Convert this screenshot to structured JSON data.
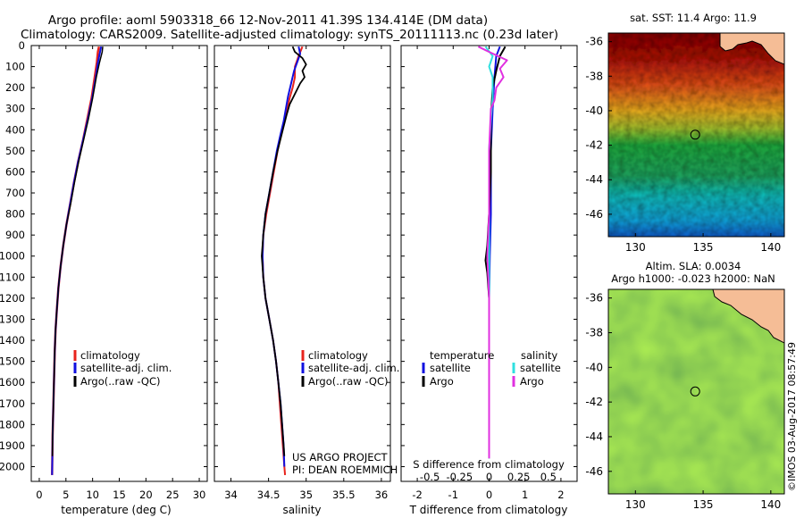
{
  "header": {
    "line1": "Argo profile: aoml 5903318_66 12-Nov-2011 41.39S 134.414E (DM data)",
    "line2": "Climatology: CARS2009. Satellite-adjusted climatology: synTS_20111113.nc (0.23d later)"
  },
  "colors": {
    "climatology": "#e8231c",
    "satellite": "#1010e0",
    "argo": "#000000",
    "argo_sal": "#e030e0",
    "sat_sal": "#30e0e0",
    "land": "#f5bd96"
  },
  "depth_axis": {
    "ticks": [
      0,
      100,
      200,
      300,
      400,
      500,
      600,
      700,
      800,
      900,
      1000,
      1100,
      1200,
      1300,
      1400,
      1500,
      1600,
      1700,
      1800,
      1900,
      2000
    ],
    "ylim": [
      0,
      2070
    ]
  },
  "chart_data": [
    {
      "type": "line",
      "name": "temperature",
      "xlabel": "temperature (deg C)",
      "xlim": [
        -1.5,
        31.5
      ],
      "xticks": [
        0,
        5,
        10,
        15,
        20,
        25,
        30
      ],
      "legend": [
        "climatology",
        "satellite-adj. clim.",
        "Argo(..raw -QC)"
      ],
      "series": [
        {
          "name": "climatology",
          "points": [
            [
              11.2,
              5
            ],
            [
              11.0,
              30
            ],
            [
              10.8,
              80
            ],
            [
              10.4,
              150
            ],
            [
              9.8,
              250
            ],
            [
              9.0,
              350
            ],
            [
              8.2,
              450
            ],
            [
              7.3,
              550
            ],
            [
              6.5,
              650
            ],
            [
              5.8,
              750
            ],
            [
              5.1,
              850
            ],
            [
              4.5,
              950
            ],
            [
              4.0,
              1050
            ],
            [
              3.6,
              1150
            ],
            [
              3.3,
              1250
            ],
            [
              3.05,
              1350
            ],
            [
              2.9,
              1450
            ],
            [
              2.8,
              1550
            ],
            [
              2.7,
              1650
            ],
            [
              2.6,
              1750
            ],
            [
              2.5,
              1850
            ],
            [
              2.45,
              1950
            ],
            [
              2.4,
              2040
            ]
          ]
        },
        {
          "name": "satellite-adj. clim.",
          "points": [
            [
              11.6,
              5
            ],
            [
              11.4,
              30
            ],
            [
              11.0,
              80
            ],
            [
              10.6,
              150
            ],
            [
              9.9,
              250
            ],
            [
              9.1,
              350
            ],
            [
              8.2,
              450
            ],
            [
              7.3,
              550
            ],
            [
              6.5,
              650
            ],
            [
              5.8,
              750
            ],
            [
              5.1,
              850
            ],
            [
              4.5,
              950
            ],
            [
              4.0,
              1050
            ],
            [
              3.6,
              1150
            ],
            [
              3.3,
              1250
            ],
            [
              3.05,
              1350
            ],
            [
              2.9,
              1450
            ],
            [
              2.8,
              1550
            ],
            [
              2.7,
              1650
            ],
            [
              2.6,
              1750
            ],
            [
              2.5,
              1850
            ],
            [
              2.45,
              1950
            ],
            [
              2.4,
              2040
            ]
          ]
        },
        {
          "name": "Argo(..raw -QC)",
          "points": [
            [
              11.9,
              5
            ],
            [
              11.8,
              30
            ],
            [
              11.3,
              80
            ],
            [
              10.7,
              150
            ],
            [
              10.0,
              250
            ],
            [
              9.2,
              350
            ],
            [
              8.3,
              450
            ],
            [
              7.4,
              550
            ],
            [
              6.6,
              650
            ],
            [
              5.9,
              750
            ],
            [
              5.1,
              850
            ],
            [
              4.5,
              950
            ],
            [
              4.0,
              1050
            ],
            [
              3.6,
              1150
            ],
            [
              3.3,
              1250
            ],
            [
              3.05,
              1350
            ],
            [
              2.9,
              1450
            ],
            [
              2.8,
              1550
            ],
            [
              2.7,
              1650
            ],
            [
              2.6,
              1750
            ],
            [
              2.5,
              1850
            ],
            [
              2.45,
              1950
            ]
          ]
        }
      ]
    },
    {
      "type": "line",
      "name": "salinity",
      "xlabel": "salinity",
      "xlim": [
        33.78,
        36.12
      ],
      "xticks": [
        34,
        34.5,
        35,
        35.5,
        36
      ],
      "legend": [
        "climatology",
        "satellite-adj. clim.",
        "Argo(..raw -QC)"
      ],
      "annotation": [
        "US ARGO PROJECT",
        "PI: DEAN ROEMMICH"
      ],
      "series": [
        {
          "name": "climatology",
          "points": [
            [
              34.95,
              5
            ],
            [
              34.9,
              50
            ],
            [
              34.85,
              100
            ],
            [
              34.85,
              150
            ],
            [
              34.82,
              200
            ],
            [
              34.78,
              250
            ],
            [
              34.75,
              300
            ],
            [
              34.72,
              350
            ],
            [
              34.68,
              400
            ],
            [
              34.62,
              500
            ],
            [
              34.57,
              600
            ],
            [
              34.52,
              700
            ],
            [
              34.47,
              800
            ],
            [
              34.43,
              900
            ],
            [
              34.42,
              1000
            ],
            [
              34.43,
              1100
            ],
            [
              34.46,
              1200
            ],
            [
              34.51,
              1300
            ],
            [
              34.56,
              1400
            ],
            [
              34.6,
              1500
            ],
            [
              34.63,
              1600
            ],
            [
              34.65,
              1700
            ],
            [
              34.67,
              1800
            ],
            [
              34.69,
              1900
            ],
            [
              34.71,
              2000
            ],
            [
              34.72,
              2040
            ]
          ]
        },
        {
          "name": "satellite-adj. clim.",
          "points": [
            [
              34.9,
              5
            ],
            [
              34.92,
              40
            ],
            [
              34.88,
              80
            ],
            [
              34.84,
              120
            ],
            [
              34.8,
              180
            ],
            [
              34.76,
              240
            ],
            [
              34.73,
              300
            ],
            [
              34.7,
              360
            ],
            [
              34.66,
              420
            ],
            [
              34.61,
              500
            ],
            [
              34.56,
              600
            ],
            [
              34.51,
              700
            ],
            [
              34.46,
              800
            ],
            [
              34.43,
              900
            ],
            [
              34.42,
              1000
            ],
            [
              34.43,
              1100
            ],
            [
              34.46,
              1200
            ],
            [
              34.51,
              1300
            ],
            [
              34.56,
              1400
            ],
            [
              34.6,
              1500
            ],
            [
              34.63,
              1600
            ],
            [
              34.66,
              1700
            ],
            [
              34.68,
              1800
            ],
            [
              34.7,
              1900
            ],
            [
              34.71,
              2000
            ]
          ]
        },
        {
          "name": "Argo(..raw -QC)",
          "points": [
            [
              34.82,
              5
            ],
            [
              34.85,
              30
            ],
            [
              34.95,
              60
            ],
            [
              35.0,
              90
            ],
            [
              34.95,
              120
            ],
            [
              34.98,
              150
            ],
            [
              34.92,
              180
            ],
            [
              34.85,
              230
            ],
            [
              34.78,
              280
            ],
            [
              34.74,
              330
            ],
            [
              34.69,
              400
            ],
            [
              34.62,
              500
            ],
            [
              34.56,
              600
            ],
            [
              34.51,
              700
            ],
            [
              34.46,
              800
            ],
            [
              34.43,
              900
            ],
            [
              34.41,
              1000
            ],
            [
              34.43,
              1100
            ],
            [
              34.46,
              1200
            ],
            [
              34.51,
              1300
            ],
            [
              34.56,
              1400
            ],
            [
              34.6,
              1500
            ],
            [
              34.63,
              1600
            ],
            [
              34.66,
              1700
            ],
            [
              34.68,
              1800
            ],
            [
              34.7,
              1900
            ],
            [
              34.71,
              1950
            ]
          ]
        }
      ]
    },
    {
      "type": "line",
      "name": "difference",
      "xlabel": "T difference from climatology",
      "xlabel_top": "S difference from climatology",
      "xlim": [
        -2.45,
        2.45
      ],
      "xticks": [
        -2,
        -1,
        0,
        1,
        2
      ],
      "top_ticks": [
        "-0.5",
        "-0.25",
        "0",
        "0.25",
        "0.5"
      ],
      "legend_temperature": [
        "temperature",
        "satellite",
        "Argo"
      ],
      "legend_salinity": [
        "salinity",
        "satellite",
        "Argo"
      ],
      "series": [
        {
          "name": "T satellite",
          "points": [
            [
              0.3,
              5
            ],
            [
              0.2,
              50
            ],
            [
              0.15,
              150
            ],
            [
              0.1,
              300
            ],
            [
              0.05,
              500
            ],
            [
              0.05,
              800
            ],
            [
              0.02,
              1000
            ],
            [
              0.0,
              1200
            ],
            [
              0.0,
              1500
            ],
            [
              0.0,
              1800
            ],
            [
              0.0,
              1960
            ]
          ]
        },
        {
          "name": "T Argo",
          "points": [
            [
              0.45,
              5
            ],
            [
              0.3,
              50
            ],
            [
              0.2,
              120
            ],
            [
              0.1,
              200
            ],
            [
              0.05,
              350
            ],
            [
              0.05,
              600
            ],
            [
              0.0,
              800
            ],
            [
              -0.05,
              950
            ],
            [
              -0.1,
              1020
            ],
            [
              -0.05,
              1080
            ],
            [
              0.0,
              1200
            ],
            [
              0.0,
              1500
            ],
            [
              0.0,
              1800
            ],
            [
              0.0,
              1960
            ]
          ]
        },
        {
          "name": "S satellite",
          "points": [
            [
              -0.1,
              5
            ],
            [
              0.1,
              50
            ],
            [
              0.0,
              100
            ],
            [
              0.1,
              150
            ],
            [
              0.1,
              250
            ],
            [
              0.05,
              350
            ],
            [
              0.0,
              500
            ],
            [
              0.0,
              800
            ],
            [
              0.0,
              1200
            ],
            [
              0.0,
              1600
            ],
            [
              0.0,
              1960
            ]
          ]
        },
        {
          "name": "S Argo",
          "points": [
            [
              -0.3,
              5
            ],
            [
              0.0,
              30
            ],
            [
              0.5,
              70
            ],
            [
              0.3,
              110
            ],
            [
              0.4,
              150
            ],
            [
              0.2,
              200
            ],
            [
              0.15,
              260
            ],
            [
              0.05,
              300
            ],
            [
              0.0,
              500
            ],
            [
              0.0,
              800
            ],
            [
              -0.05,
              1000
            ],
            [
              0.0,
              1200
            ],
            [
              0.0,
              1500
            ],
            [
              0.0,
              1960
            ]
          ]
        }
      ]
    },
    {
      "type": "heatmap",
      "name": "sst_map",
      "title": "sat. SST: 11.4  Argo: 11.9",
      "xticks": [
        130,
        135,
        140
      ],
      "yticks": [
        -36,
        -38,
        -40,
        -42,
        -44,
        -46
      ],
      "xlim": [
        128,
        141
      ],
      "ylim": [
        -47.3,
        -35.5
      ],
      "marker": {
        "lon": 134.414,
        "lat": -41.39
      }
    },
    {
      "type": "heatmap",
      "name": "sla_map",
      "title": "Altim. SLA: 0.0034",
      "title2": "Argo h1000: -0.023 h2000: NaN",
      "xticks": [
        130,
        135,
        140
      ],
      "yticks": [
        -36,
        -38,
        -40,
        -42,
        -44,
        -46
      ],
      "xlim": [
        128,
        141
      ],
      "ylim": [
        -47.3,
        -35.5
      ],
      "marker": {
        "lon": 134.414,
        "lat": -41.39
      }
    }
  ],
  "credit": "©IMOS 03-Aug-2017 08:57:49"
}
